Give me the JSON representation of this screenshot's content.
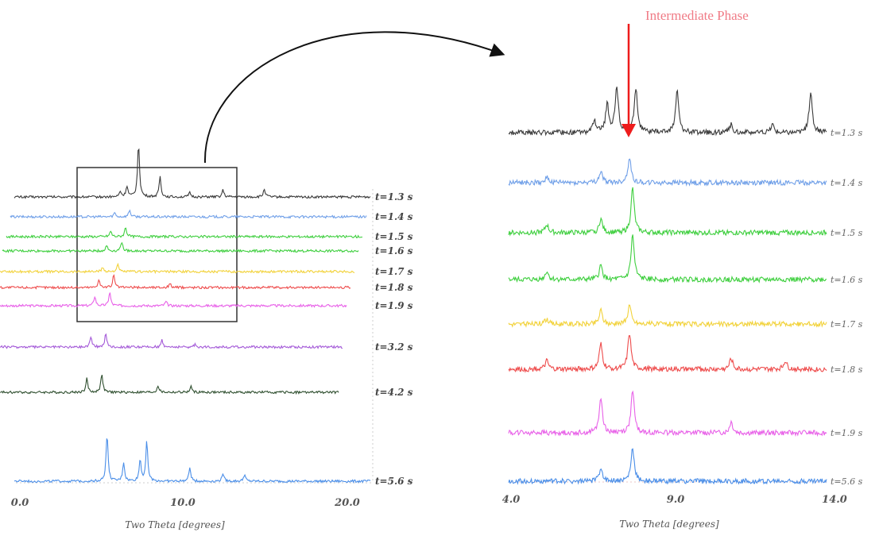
{
  "annotation": "Intermediate Phase",
  "colors": {
    "t=1.3 s": "#3a3a3a",
    "t=1.4 s": "#6f9fe8",
    "t=1.5 s": "#3fcf3f",
    "t=1.6 s": "#3fcf3f",
    "t=1.7 s": "#f2d23a",
    "t=1.8 s": "#ee4c4c",
    "t=1.9 s": "#e860e8",
    "t=3.2 s": "#a45ad8",
    "t=4.2 s": "#2f4f2f",
    "t=5.6 s": "#4a8ee8",
    "arrow": "#ee1c1c"
  },
  "chart_data": [
    {
      "type": "line",
      "title": "",
      "xlabel": "Two Theta [degrees]",
      "ylabel": "",
      "xlim": [
        0,
        21.5
      ],
      "xticks": [
        "0.0",
        "10.0",
        "20.0"
      ],
      "series": [
        {
          "name": "t=1.3 s",
          "peaks": [
            [
              6.4,
              0.4
            ],
            [
              6.8,
              0.8
            ],
            [
              7.5,
              4.0
            ],
            [
              8.8,
              1.5
            ],
            [
              10.6,
              0.3
            ],
            [
              12.6,
              0.5
            ],
            [
              15.1,
              0.6
            ]
          ]
        },
        {
          "name": "t=1.4 s",
          "peaks": [
            [
              6.3,
              0.3
            ],
            [
              7.2,
              0.5
            ]
          ]
        },
        {
          "name": "t=1.5 s",
          "peaks": [
            [
              6.3,
              0.4
            ],
            [
              7.2,
              0.7
            ]
          ]
        },
        {
          "name": "t=1.6 s",
          "peaks": [
            [
              6.3,
              0.4
            ],
            [
              7.2,
              0.7
            ]
          ]
        },
        {
          "name": "t=1.7 s",
          "peaks": [
            [
              6.3,
              0.3
            ],
            [
              7.2,
              0.5
            ]
          ]
        },
        {
          "name": "t=1.8 s",
          "peaks": [
            [
              6.3,
              0.6
            ],
            [
              7.2,
              0.9
            ],
            [
              10.6,
              0.3
            ]
          ]
        },
        {
          "name": "t=1.9 s",
          "peaks": [
            [
              6.3,
              0.7
            ],
            [
              7.2,
              1.0
            ],
            [
              10.6,
              0.3
            ]
          ]
        },
        {
          "name": "t=3.2 s",
          "peaks": [
            [
              6.3,
              0.8
            ],
            [
              7.2,
              1.0
            ],
            [
              10.6,
              0.5
            ],
            [
              12.6,
              0.2
            ]
          ]
        },
        {
          "name": "t=4.2 s",
          "peaks": [
            [
              6.3,
              1.0
            ],
            [
              7.2,
              1.4
            ],
            [
              10.6,
              0.5
            ],
            [
              12.6,
              0.4
            ]
          ]
        },
        {
          "name": "t=5.6 s",
          "peaks": [
            [
              5.6,
              3.5
            ],
            [
              6.6,
              1.4
            ],
            [
              7.6,
              1.6
            ],
            [
              8.0,
              3.0
            ],
            [
              10.6,
              1.0
            ],
            [
              12.6,
              0.6
            ],
            [
              13.9,
              0.5
            ]
          ]
        }
      ]
    },
    {
      "type": "line",
      "title": "",
      "xlabel": "Two Theta [degrees]",
      "ylabel": "",
      "xlim": [
        4.0,
        14.0
      ],
      "xticks": [
        "4.0",
        "9.0",
        "14.0"
      ],
      "series": [
        {
          "name": "t=1.3 s",
          "peaks": [
            [
              6.7,
              0.4
            ],
            [
              7.1,
              1.0
            ],
            [
              7.4,
              1.6
            ],
            [
              8.0,
              1.6
            ],
            [
              9.3,
              1.5
            ],
            [
              11.0,
              0.3
            ],
            [
              12.3,
              0.3
            ],
            [
              13.5,
              1.4
            ]
          ]
        },
        {
          "name": "t=1.4 s",
          "peaks": [
            [
              5.2,
              0.2
            ],
            [
              6.9,
              0.4
            ],
            [
              7.8,
              0.9
            ]
          ]
        },
        {
          "name": "t=1.5 s",
          "peaks": [
            [
              5.2,
              0.3
            ],
            [
              6.9,
              0.5
            ],
            [
              7.9,
              1.6
            ]
          ]
        },
        {
          "name": "t=1.6 s",
          "peaks": [
            [
              5.2,
              0.3
            ],
            [
              6.9,
              0.5
            ],
            [
              7.9,
              1.6
            ]
          ]
        },
        {
          "name": "t=1.7 s",
          "peaks": [
            [
              5.2,
              0.2
            ],
            [
              6.9,
              0.5
            ],
            [
              7.8,
              0.7
            ]
          ]
        },
        {
          "name": "t=1.8 s",
          "peaks": [
            [
              5.2,
              0.3
            ],
            [
              6.9,
              0.9
            ],
            [
              7.8,
              1.3
            ],
            [
              11.0,
              0.4
            ],
            [
              12.7,
              0.3
            ]
          ]
        },
        {
          "name": "t=1.9 s",
          "peaks": [
            [
              6.9,
              1.3
            ],
            [
              7.9,
              1.5
            ],
            [
              11.0,
              0.4
            ]
          ]
        },
        {
          "name": "t=5.6 s",
          "peaks": [
            [
              6.9,
              0.5
            ],
            [
              7.9,
              1.2
            ]
          ]
        }
      ]
    }
  ]
}
